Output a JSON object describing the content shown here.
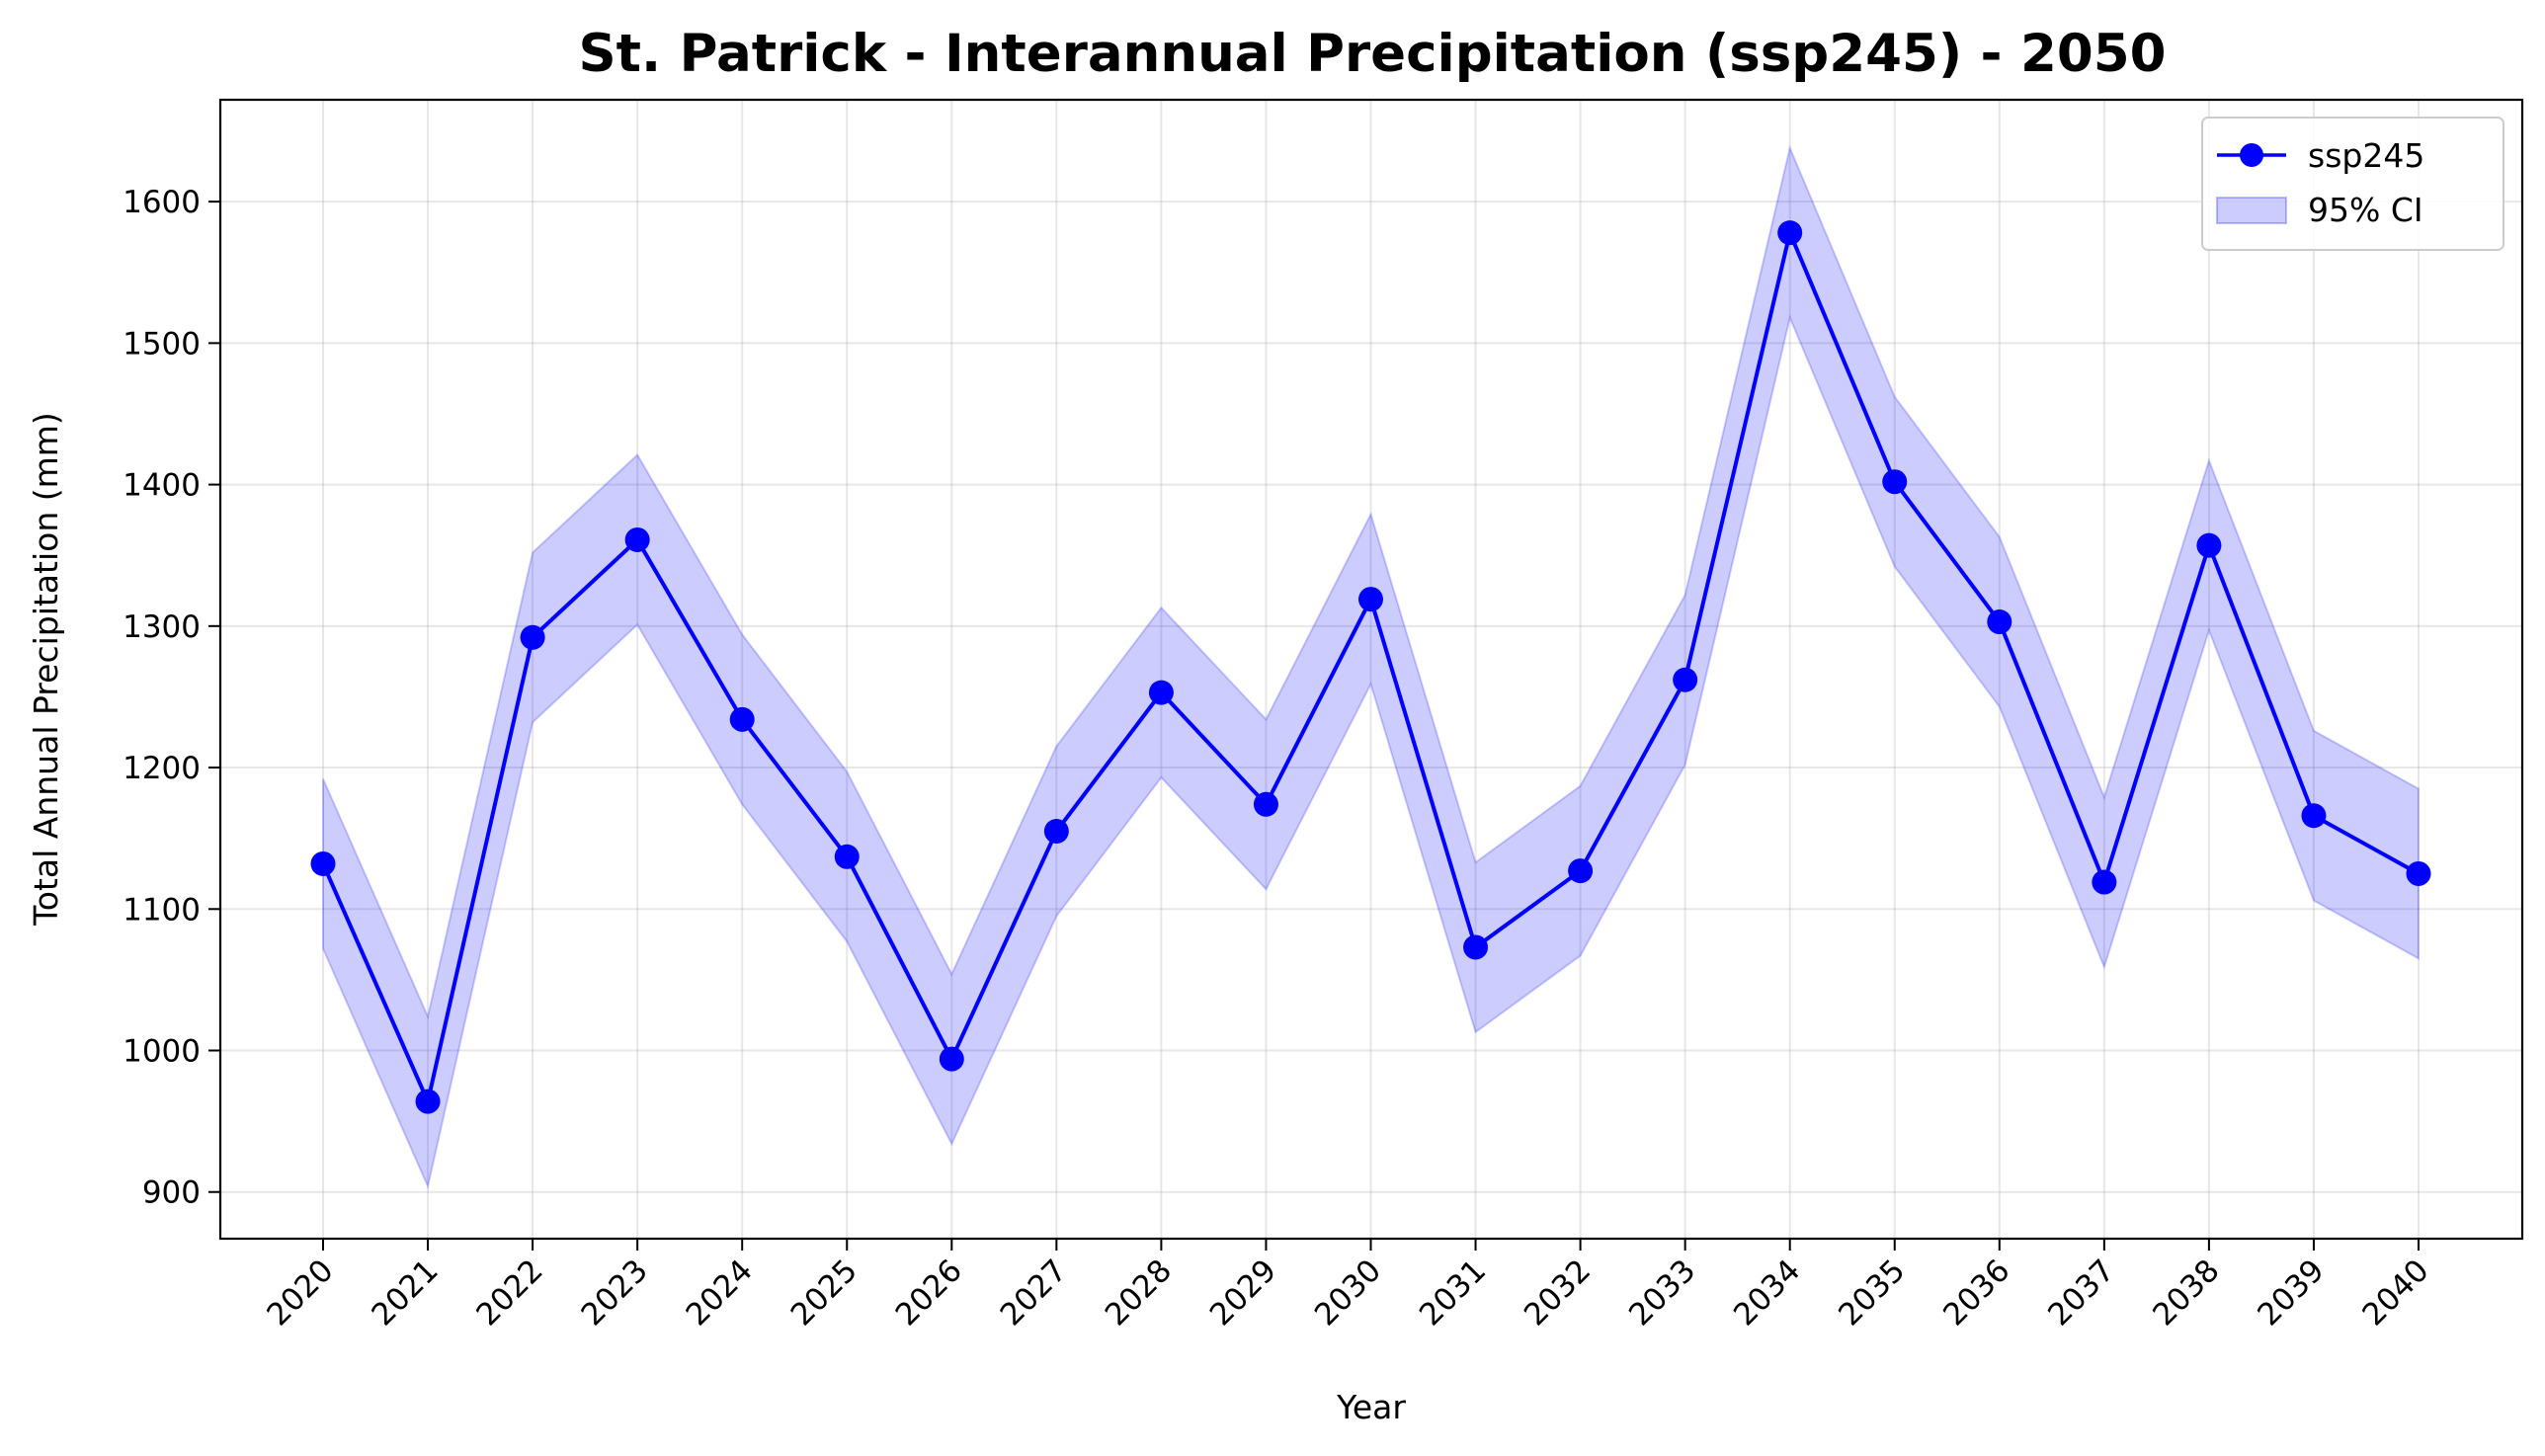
{
  "chart_data": {
    "type": "line",
    "title": "St. Patrick - Interannual Precipitation (ssp245) - 2050",
    "xlabel": "Year",
    "ylabel": "Total Annual Precipitation (mm)",
    "x": [
      "2020",
      "2021",
      "2022",
      "2023",
      "2024",
      "2025",
      "2026",
      "2027",
      "2028",
      "2029",
      "2030",
      "2031",
      "2032",
      "2033",
      "2034",
      "2035",
      "2036",
      "2037",
      "2038",
      "2039",
      "2040"
    ],
    "series": [
      {
        "name": "ssp245",
        "values": [
          1132,
          964,
          1292,
          1361,
          1234,
          1137,
          994,
          1155,
          1253,
          1174,
          1319,
          1073,
          1127,
          1262,
          1578,
          1402,
          1303,
          1119,
          1357,
          1166,
          1125
        ]
      }
    ],
    "ci": {
      "name": "95% CI",
      "lower": [
        1072,
        904,
        1232,
        1301,
        1174,
        1077,
        934,
        1095,
        1193,
        1114,
        1259,
        1013,
        1067,
        1202,
        1518,
        1342,
        1243,
        1059,
        1297,
        1106,
        1065
      ],
      "upper": [
        1192,
        1024,
        1352,
        1421,
        1294,
        1197,
        1054,
        1215,
        1313,
        1234,
        1379,
        1133,
        1187,
        1322,
        1638,
        1462,
        1363,
        1179,
        1417,
        1226,
        1185
      ]
    },
    "yticks": [
      900,
      1000,
      1100,
      1200,
      1300,
      1400,
      1500,
      1600
    ],
    "ylim": [
      867,
      1672
    ],
    "grid": true,
    "legend": "top-right",
    "colors": {
      "line": "#0000ff",
      "ci_fill": "#0000ff"
    }
  }
}
